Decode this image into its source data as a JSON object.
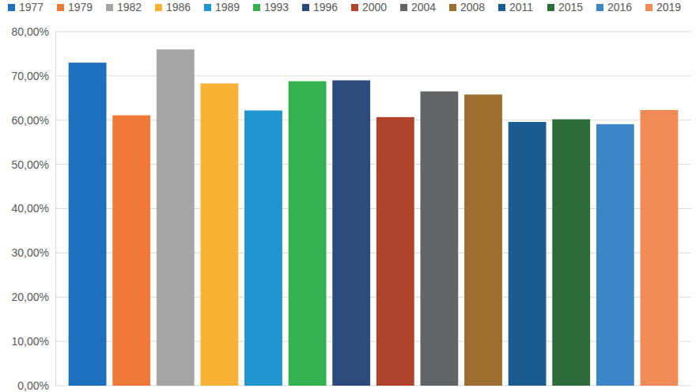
{
  "chart_data": {
    "type": "bar",
    "categories": [
      "1977",
      "1979",
      "1982",
      "1986",
      "1989",
      "1993",
      "1996",
      "2000",
      "2004",
      "2008",
      "2011",
      "2015",
      "2016",
      "2019"
    ],
    "values": [
      73.0,
      61.1,
      76.0,
      68.3,
      62.2,
      68.8,
      69.0,
      60.7,
      66.5,
      65.8,
      59.6,
      60.2,
      59.1,
      62.3
    ],
    "colors": [
      "#1f6fbf",
      "#f07838",
      "#a5a5a5",
      "#f9b233",
      "#1f96d0",
      "#34b250",
      "#2c4a7c",
      "#b0432c",
      "#636466",
      "#9c6d2e",
      "#1a5c8f",
      "#2e6b3a",
      "#3c86c8",
      "#f28a56"
    ],
    "ylim": [
      0,
      80
    ],
    "yticks": [
      {
        "value": 0,
        "label": "0,00%"
      },
      {
        "value": 10,
        "label": "10,00%"
      },
      {
        "value": 20,
        "label": "20,00%"
      },
      {
        "value": 30,
        "label": "30,00%"
      },
      {
        "value": 40,
        "label": "40,00%"
      },
      {
        "value": 50,
        "label": "50,00%"
      },
      {
        "value": 60,
        "label": "60,00%"
      },
      {
        "value": 70,
        "label": "70,00%"
      },
      {
        "value": 80,
        "label": "80,00%"
      }
    ],
    "grid": true,
    "legend": "top",
    "tick_labels": "y"
  }
}
